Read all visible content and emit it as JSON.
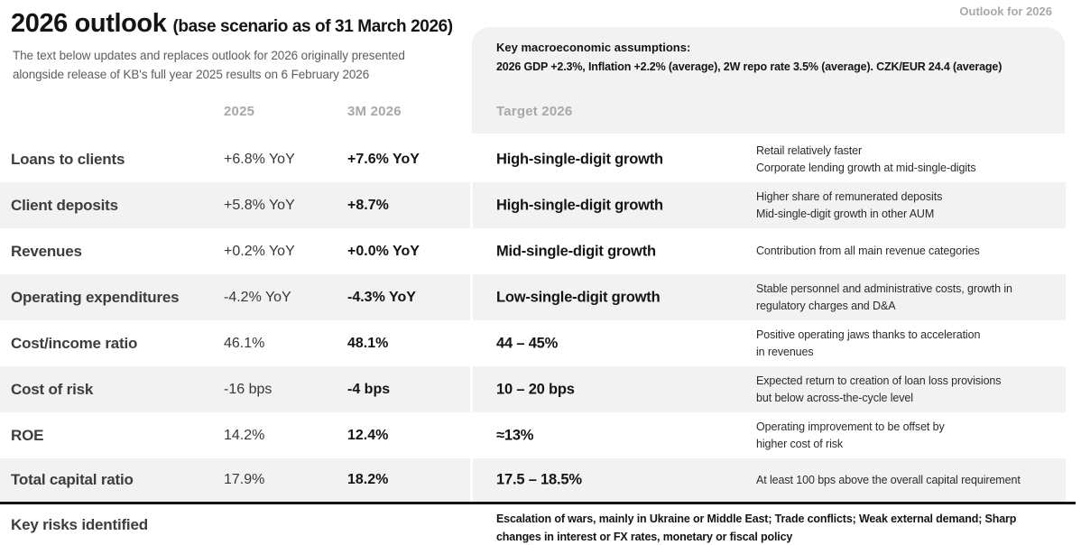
{
  "page": {
    "corner_note": "Outlook for 2026"
  },
  "header": {
    "title": "2026 outlook",
    "title_suffix": "(base scenario as of 31 March 2026)",
    "subtitle_line1": "The text below updates and replaces outlook for 2026 originally presented",
    "subtitle_line2": "alongside release of KB's full year 2025 results on 6 February 2026"
  },
  "assumptions": {
    "heading": "Key macroeconomic assumptions:",
    "detail": "2026 GDP +2.3%, Inflation +2.2% (average), 2W repo rate 3.5% (average). CZK/EUR 24.4 (average)"
  },
  "columns": {
    "prior": "2025",
    "interim": "3M 2026",
    "target": "Target 2026"
  },
  "rows": [
    {
      "label": "Loans to clients",
      "v2025": "+6.8% YoY",
      "v3m2026": "+7.6% YoY",
      "target": "High-single-digit growth",
      "comment": [
        "Retail relatively faster",
        "Corporate lending growth at mid-single-digits"
      ]
    },
    {
      "label": "Client deposits",
      "v2025": "+5.8% YoY",
      "v3m2026": "+8.7%",
      "target": "High-single-digit growth",
      "comment": [
        "Higher share of remunerated deposits",
        "Mid-single-digit growth in other AUM"
      ]
    },
    {
      "label": "Revenues",
      "v2025": "+0.2% YoY",
      "v3m2026": "+0.0% YoY",
      "target": "Mid-single-digit growth",
      "comment": [
        "Contribution from all main revenue categories"
      ]
    },
    {
      "label": "Operating expenditures",
      "v2025": "-4.2% YoY",
      "v3m2026": "-4.3% YoY",
      "target": "Low-single-digit growth",
      "comment": [
        "Stable personnel and administrative costs, growth in",
        "regulatory charges and D&A"
      ]
    },
    {
      "label": "Cost/income ratio",
      "v2025": "46.1%",
      "v3m2026": "48.1%",
      "target": "44 – 45%",
      "comment": [
        "Positive operating jaws thanks to acceleration",
        "in revenues"
      ]
    },
    {
      "label": "Cost of risk",
      "v2025": "-16 bps",
      "v3m2026": "-4 bps",
      "target": "10 – 20 bps",
      "comment": [
        "Expected return to creation of loan loss provisions",
        "but below across-the-cycle level"
      ]
    },
    {
      "label": "ROE",
      "v2025": "14.2%",
      "v3m2026": "12.4%",
      "target": "≈13%",
      "comment": [
        "Operating improvement to be offset by",
        "higher cost of risk"
      ]
    },
    {
      "label": "Total capital ratio",
      "v2025": "17.9%",
      "v3m2026": "18.2%",
      "target": "17.5 – 18.5%",
      "comment": [
        "At least 100 bps above the overall capital requirement"
      ]
    }
  ],
  "key_risks": {
    "label": "Key risks identified",
    "line1": "Escalation of wars, mainly in Ukraine or Middle East; Trade conflicts; Weak external demand; Sharp",
    "line2": "changes in interest or FX rates, monetary or fiscal policy"
  },
  "colors": {
    "row_shade": "#f2f2f2",
    "divider_black": "#141414",
    "muted_gray": "#a8a8a8",
    "text_dark": "#141414",
    "text_body": "#2b2b2b"
  }
}
